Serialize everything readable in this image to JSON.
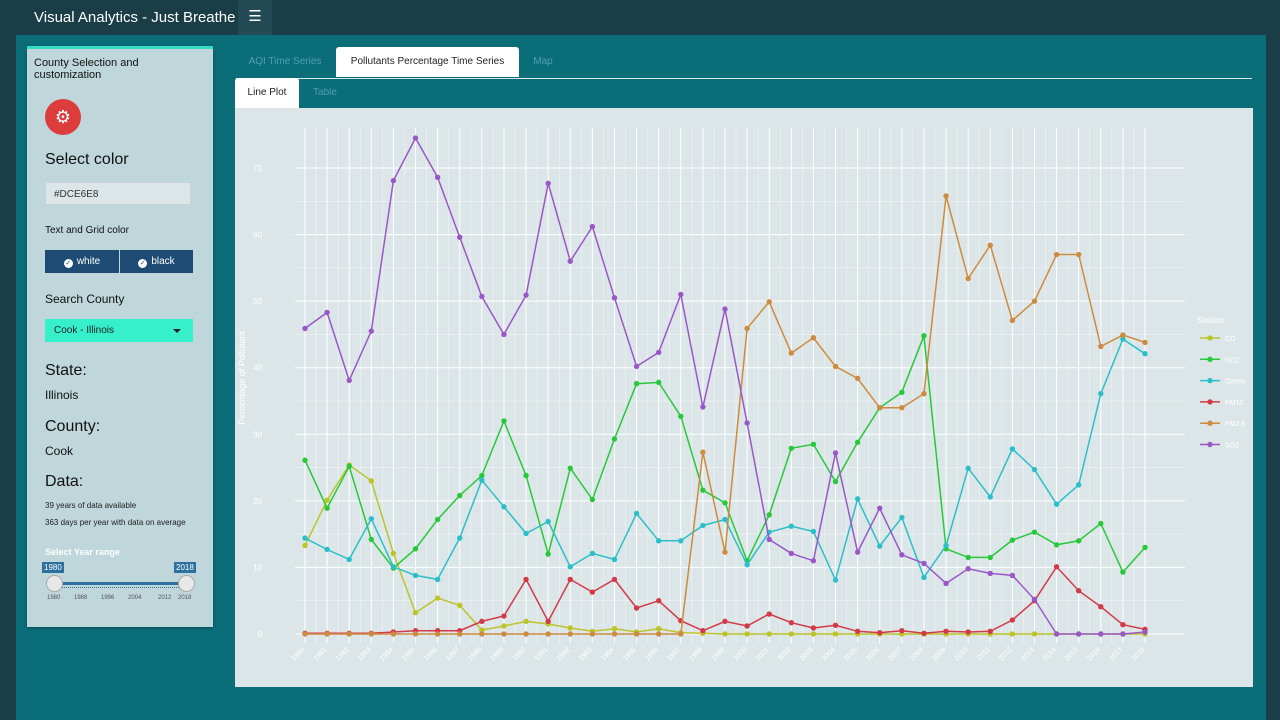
{
  "app": {
    "title": "Visual Analytics - Just Breathe",
    "menu_icon": "hamburger-icon"
  },
  "sidebar": {
    "header": "County Selection and customization",
    "select_color_label": "Select color",
    "color_value": "#DCE6E8",
    "text_grid_label": "Text and Grid color",
    "toggle_white": "white",
    "toggle_black": "black",
    "search_county_label": "Search County",
    "county_selected": "Cook - Illinois",
    "state_label": "State:",
    "state_value": "Illinois",
    "county_label": "County:",
    "county_value": "Cook",
    "data_label": "Data:",
    "years_available": "39 years of data available",
    "days_per_year": "363 days per year with data on average",
    "year_range_label": "Select Year range",
    "year_min": "1980",
    "year_max": "2018",
    "year_ticks": [
      "1980",
      "1988",
      "1996",
      "2004",
      "2012",
      "2018"
    ],
    "accent_color": "#36dcc0"
  },
  "tabs": [
    {
      "label": "AQI Time Series",
      "active": false
    },
    {
      "label": "Pollutants Percentage Time Series",
      "active": true
    },
    {
      "label": "Map",
      "active": false
    }
  ],
  "subtabs": [
    {
      "label": "Line Plot",
      "active": true
    },
    {
      "label": "Table",
      "active": false
    }
  ],
  "chart_data": {
    "type": "line",
    "ylabel": "Percentage of Pollutant",
    "xlabel": "",
    "ylim": [
      0,
      75
    ],
    "yticks": [
      0,
      10,
      20,
      30,
      40,
      50,
      60,
      70
    ],
    "x": [
      1980,
      1981,
      1982,
      1983,
      1984,
      1985,
      1986,
      1987,
      1988,
      1989,
      1990,
      1991,
      1992,
      1993,
      1994,
      1995,
      1996,
      1997,
      1998,
      1999,
      2000,
      2001,
      2002,
      2003,
      2004,
      2005,
      2006,
      2007,
      2008,
      2009,
      2010,
      2011,
      2012,
      2013,
      2014,
      2015,
      2016,
      2017,
      2018
    ],
    "grid": true,
    "legend_title": "Statistic",
    "legend_position": "right",
    "series": [
      {
        "name": "CO",
        "color": "#bcc42a",
        "values": [
          13.3,
          20.1,
          25.4,
          23.0,
          12.1,
          3.2,
          5.4,
          4.3,
          0.6,
          1.2,
          1.9,
          1.5,
          0.9,
          0.4,
          0.8,
          0.3,
          0.8,
          0.2,
          0.1,
          0,
          0,
          0,
          0,
          0,
          0,
          0,
          0,
          0,
          0,
          0,
          0,
          0,
          0,
          0,
          0,
          0,
          0,
          0,
          0
        ]
      },
      {
        "name": "NO2",
        "color": "#27c93a",
        "values": [
          26.1,
          18.9,
          25.2,
          14.2,
          9.9,
          12.8,
          17.2,
          20.8,
          23.8,
          32.0,
          23.8,
          12.0,
          24.9,
          20.2,
          29.3,
          37.6,
          37.8,
          32.7,
          21.6,
          19.7,
          11.0,
          17.9,
          27.9,
          28.5,
          22.9,
          28.8,
          34.0,
          36.3,
          44.8,
          12.8,
          11.5,
          11.5,
          14.1,
          15.3,
          13.4,
          14.0,
          16.6,
          9.3,
          13.0
        ]
      },
      {
        "name": "Ozone",
        "color": "#2bbfc9",
        "values": [
          14.4,
          12.7,
          11.2,
          17.3,
          10.1,
          8.8,
          8.2,
          14.4,
          23.1,
          19.1,
          15.1,
          16.9,
          10.1,
          12.1,
          11.2,
          18.1,
          14.0,
          14.0,
          16.3,
          17.2,
          10.4,
          15.3,
          16.2,
          15.4,
          8.1,
          20.3,
          13.2,
          17.5,
          8.5,
          13.3,
          24.9,
          20.6,
          27.8,
          24.7,
          19.5,
          22.4,
          36.1,
          44.3,
          42.1
        ]
      },
      {
        "name": "PM10",
        "color": "#d23a49",
        "values": [
          0.1,
          0.1,
          0.1,
          0.1,
          0.3,
          0.5,
          0.5,
          0.5,
          1.9,
          2.7,
          8.2,
          1.9,
          8.2,
          6.3,
          8.2,
          3.9,
          5.0,
          2.0,
          0.5,
          1.9,
          1.2,
          3.0,
          1.7,
          0.9,
          1.3,
          0.4,
          0.2,
          0.5,
          0.1,
          0.4,
          0.3,
          0.4,
          2.1,
          5.0,
          10.1,
          6.5,
          4.1,
          1.4,
          0.7
        ]
      },
      {
        "name": "PM2.5",
        "color": "#cd8b3f",
        "values": [
          0,
          0,
          0,
          0,
          0,
          0,
          0,
          0,
          0,
          0,
          0,
          0,
          0,
          0,
          0,
          0,
          0,
          0,
          27.3,
          12.3,
          45.9,
          49.9,
          42.2,
          44.5,
          40.2,
          38.4,
          34.0,
          34.0,
          36.1,
          65.8,
          53.4,
          58.4,
          47.1,
          50.0,
          57.0,
          57.0,
          43.2,
          44.9,
          43.8
        ]
      },
      {
        "name": "SO2",
        "color": "#9a57c6",
        "values": [
          45.9,
          48.3,
          38.1,
          45.5,
          68.1,
          74.5,
          68.6,
          59.6,
          50.7,
          45.0,
          50.9,
          67.7,
          56.0,
          61.2,
          50.5,
          40.2,
          42.3,
          51.0,
          34.1,
          48.8,
          31.7,
          14.2,
          12.1,
          11.0,
          27.2,
          12.3,
          18.9,
          11.9,
          10.6,
          7.6,
          9.8,
          9.1,
          8.8,
          5.2,
          0,
          0,
          0,
          0,
          0.3
        ]
      }
    ]
  }
}
